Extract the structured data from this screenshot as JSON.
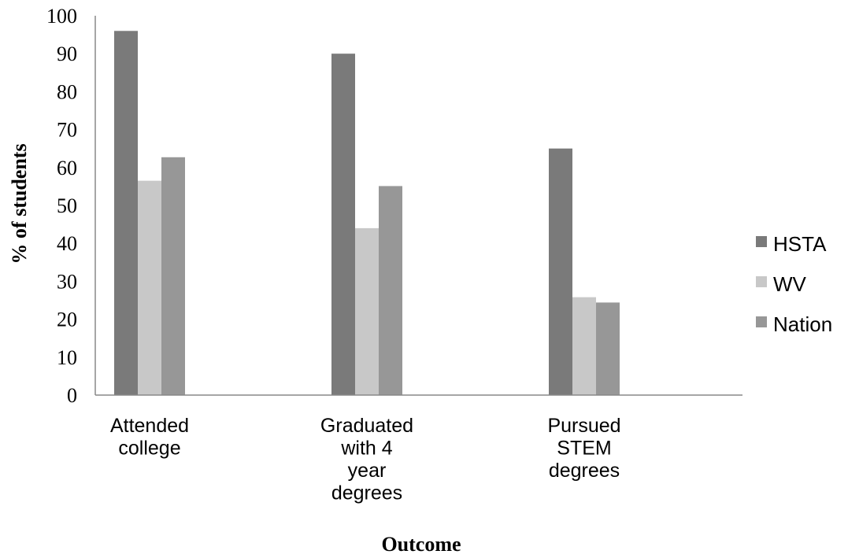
{
  "chart_data": {
    "type": "bar",
    "categories": [
      [
        "Attended",
        "college"
      ],
      [
        "Graduated",
        "with 4",
        "year",
        "degrees"
      ],
      [
        "Pursued",
        "STEM",
        "degrees"
      ]
    ],
    "series": [
      {
        "name": "HSTA",
        "values": [
          96,
          90,
          65
        ],
        "color": "#7a7a7a"
      },
      {
        "name": "WV",
        "values": [
          56.5,
          44,
          25.8
        ],
        "color": "#c8c8c8"
      },
      {
        "name": "Nation",
        "values": [
          62.7,
          55.1,
          24.4
        ],
        "color": "#979797"
      }
    ],
    "xlabel": "Outcome",
    "ylabel": "% of students",
    "ylim": [
      0,
      100
    ],
    "yticks": [
      0,
      10,
      20,
      30,
      40,
      50,
      60,
      70,
      80,
      90,
      100
    ],
    "grid": false,
    "legend_position": "right",
    "axis_color": "#888888"
  }
}
